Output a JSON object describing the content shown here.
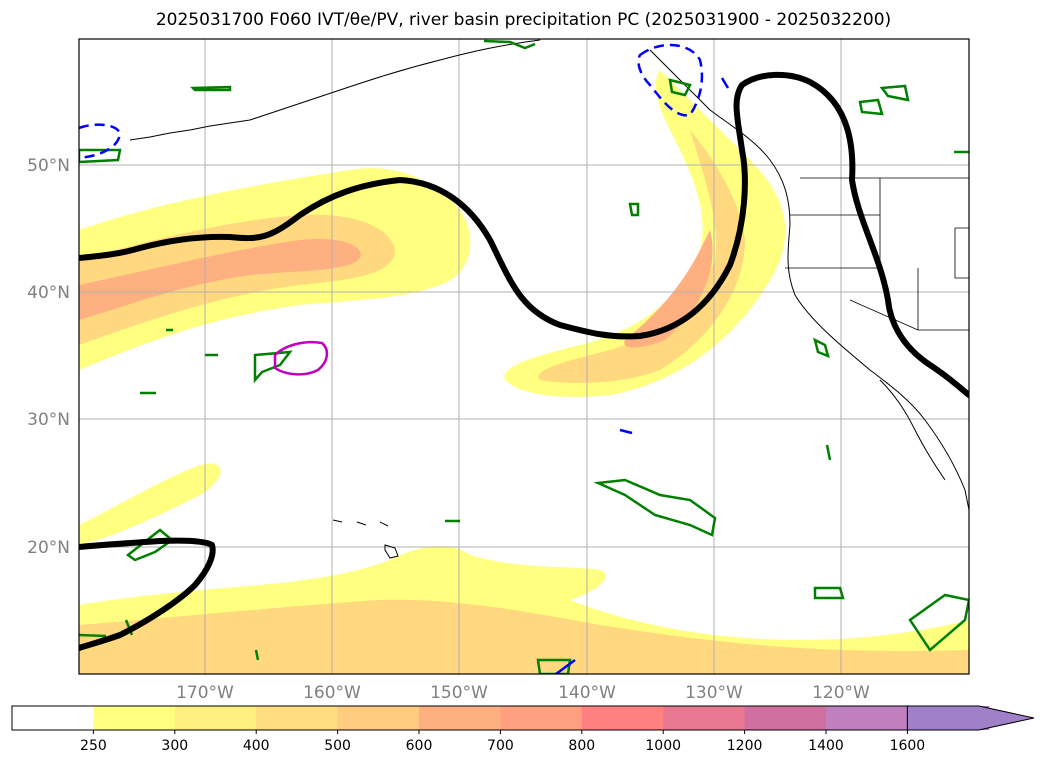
{
  "title": "2025031700 F060 IVT/θe/PV, river basin precipitation PC (2025031900 - 2025032200)",
  "latitude_labels": [
    "50°N",
    "40°N",
    "30°N",
    "20°N"
  ],
  "longitude_labels": [
    "170°W",
    "160°W",
    "150°W",
    "140°W",
    "130°W",
    "120°W"
  ],
  "colorbar": {
    "levels": [
      "250",
      "300",
      "400",
      "500",
      "600",
      "700",
      "800",
      "1000",
      "1200",
      "1400",
      "1600"
    ],
    "colors": [
      "#ffffff",
      "#ffff80",
      "#ffee80",
      "#ffdd80",
      "#ffcc80",
      "#ffb080",
      "#ffa080",
      "#ff8080",
      "#e87890",
      "#d070a0",
      "#c080c0",
      "#a080c8"
    ],
    "extend": "max"
  },
  "colors": {
    "ivt_light": "#ffff80",
    "ivt_mid": "#ffd880",
    "ivt_high": "#ffb080",
    "contour_thick": "#000000",
    "pv_green": "#008000",
    "pv_blue": "#0000ff",
    "pv_magenta": "#c000c0",
    "grid": "#b0b0b0"
  }
}
